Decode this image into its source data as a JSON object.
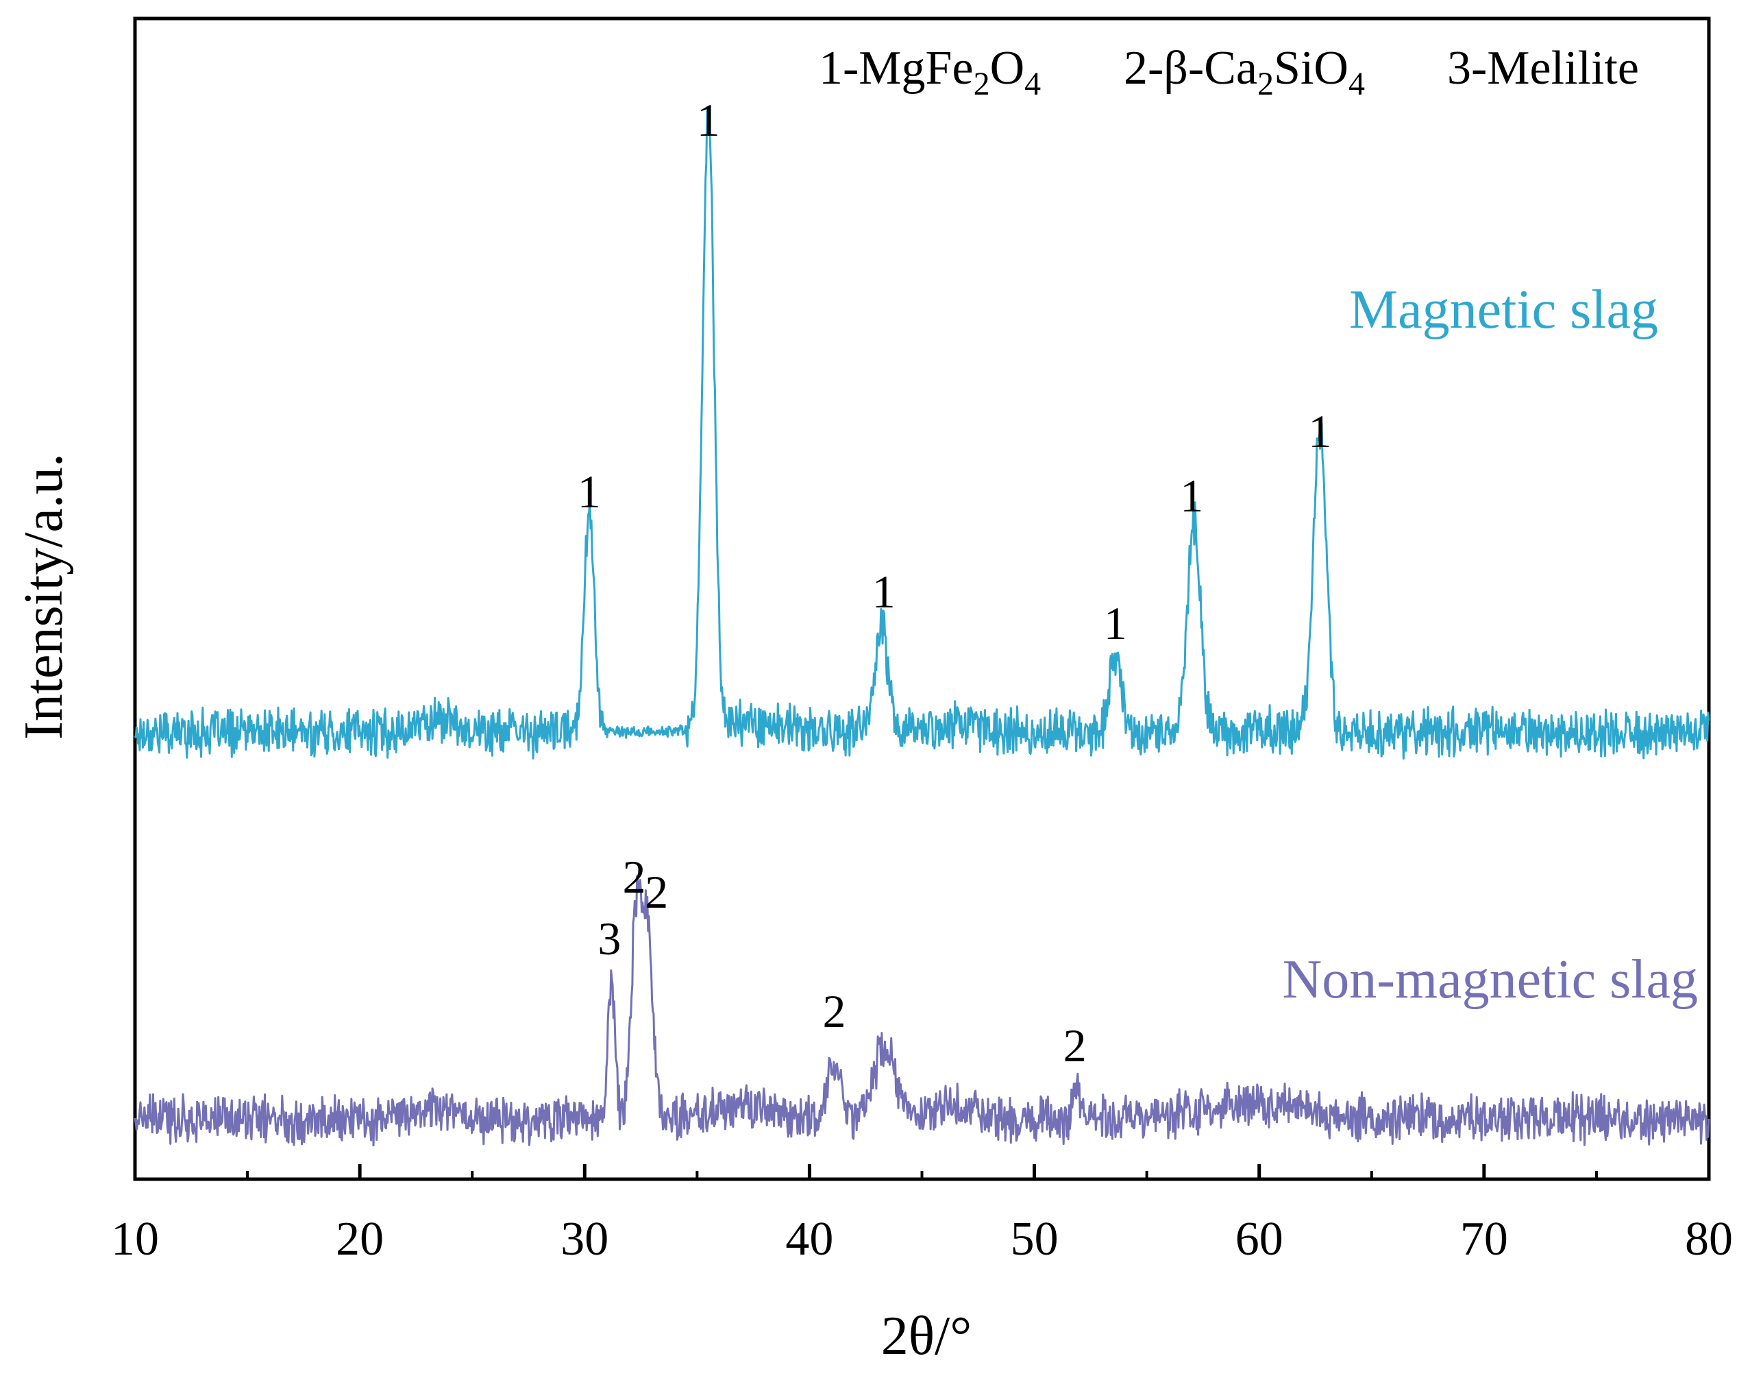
{
  "chart_data": {
    "type": "line",
    "title": "",
    "xlabel": "2θ/°",
    "ylabel": "Intensity/a.u.",
    "xlim": [
      10,
      80
    ],
    "xticks": [
      10,
      20,
      30,
      40,
      50,
      60,
      70,
      80
    ],
    "xtick_labels": [
      "10",
      "20",
      "30",
      "40",
      "50",
      "60",
      "70",
      "80"
    ],
    "yticks_shown": false,
    "grid": false,
    "legend": {
      "placement": "top",
      "entries": [
        {
          "key": "phase1",
          "parts": [
            "1-MgFe",
            "2",
            "O",
            "4"
          ]
        },
        {
          "key": "phase2",
          "parts": [
            "2-β-Ca",
            "2",
            "SiO",
            "4"
          ]
        },
        {
          "key": "phase3",
          "parts": [
            "3-Melilite"
          ]
        }
      ]
    },
    "series": [
      {
        "name": "Magnetic slag",
        "color": "#2ea7cf",
        "baseline": 24,
        "noise": 4,
        "peaks": [
          {
            "x": 30.2,
            "height": 48,
            "width": 0.28,
            "label": "1"
          },
          {
            "x": 35.5,
            "height": 138,
            "width": 0.3,
            "label": "1"
          },
          {
            "x": 43.2,
            "height": 23,
            "width": 0.35,
            "label": "1"
          },
          {
            "x": 53.6,
            "height": 17,
            "width": 0.33,
            "label": "1"
          },
          {
            "x": 57.1,
            "height": 46,
            "width": 0.35,
            "label": "1"
          },
          {
            "x": 62.7,
            "height": 67,
            "width": 0.35,
            "label": "1"
          }
        ],
        "labels_x": [
          30.2,
          35.5,
          43.3,
          53.6,
          57.0,
          62.7
        ]
      },
      {
        "name": "Non-magnetic slag",
        "color": "#7370b6",
        "baseline": 8,
        "noise": 4,
        "peaks": [
          {
            "x": 31.2,
            "height": 31,
            "width": 0.18,
            "label": "3"
          },
          {
            "x": 32.3,
            "height": 46,
            "width": 0.28,
            "label": "2"
          },
          {
            "x": 32.8,
            "height": 40,
            "width": 0.28,
            "label": "2"
          },
          {
            "x": 41.1,
            "height": 12,
            "width": 0.35,
            "label": "2"
          },
          {
            "x": 43.3,
            "height": 15,
            "width": 0.6,
            "label": ""
          },
          {
            "x": 51.9,
            "height": 6,
            "width": 0.25,
            "label": "2"
          }
        ],
        "labels_x": [
          31.1,
          32.2,
          33.2,
          41.1,
          51.8
        ]
      }
    ],
    "peak_labels": {
      "magnetic": [
        "1",
        "1",
        "1",
        "1",
        "1",
        "1"
      ],
      "non_magnetic": [
        "3",
        "2",
        "2",
        "2",
        "2"
      ]
    },
    "series_labels": [
      "Magnetic slag",
      "Non-magnetic slag"
    ]
  }
}
